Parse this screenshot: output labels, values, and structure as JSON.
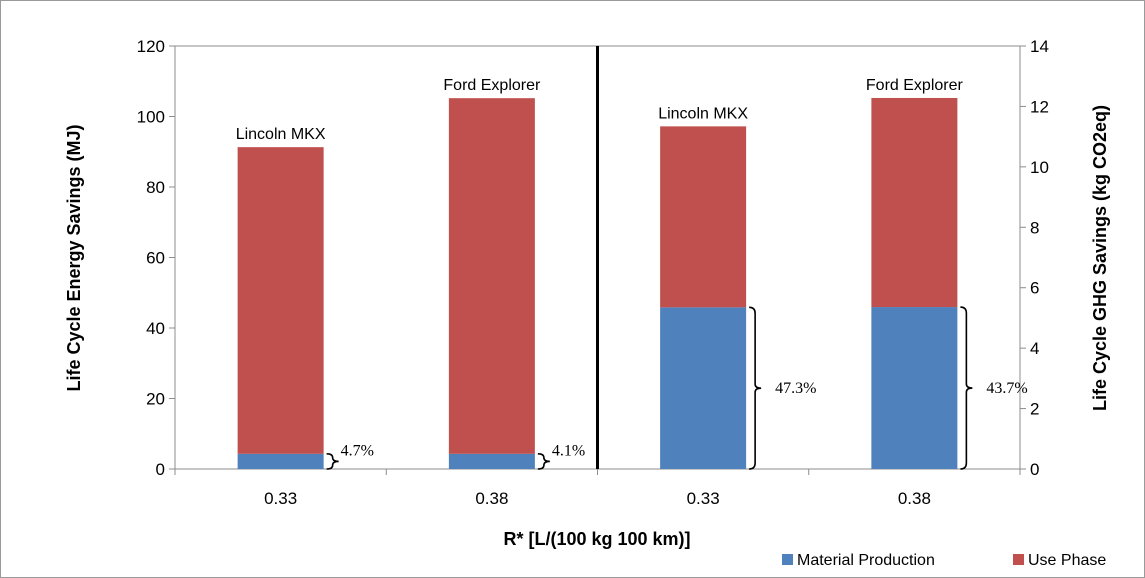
{
  "chart_data": {
    "type": "bar",
    "stacked": true,
    "title": "",
    "xlabel": "R* [L/(100 kg 100 km)]",
    "ylabel_left": "Life Cycle Energy Savings (MJ)",
    "ylabel_right": "Life Cycle GHG Savings (kg CO2eq)",
    "categories": [
      "0.33",
      "0.38",
      "0.33",
      "0.38"
    ],
    "bar_labels": [
      "Lincoln MKX",
      "Ford Explorer",
      "Lincoln MKX",
      "Ford Explorer"
    ],
    "axis_for_bar": [
      "left",
      "left",
      "right",
      "right"
    ],
    "series": [
      {
        "name": "Material Production",
        "color": "#4f81bd",
        "values": [
          4.3,
          4.3,
          5.35,
          5.36
        ]
      },
      {
        "name": "Use Phase",
        "color": "#c0504d",
        "values": [
          87.0,
          100.9,
          5.99,
          6.92
        ]
      }
    ],
    "percent_annotations": [
      "4.7%",
      "4.1%",
      "47.3%",
      "43.7%"
    ],
    "ylim_left": [
      0,
      120
    ],
    "yticks_left": [
      "0",
      "20",
      "40",
      "60",
      "80",
      "100",
      "120"
    ],
    "ylim_right": [
      0,
      14
    ],
    "yticks_right": [
      "0",
      "2",
      "4",
      "6",
      "8",
      "10",
      "12",
      "14"
    ],
    "grid": false,
    "legend_position": "bottom-right",
    "divider": "vertical line between the energy and GHG groups"
  }
}
